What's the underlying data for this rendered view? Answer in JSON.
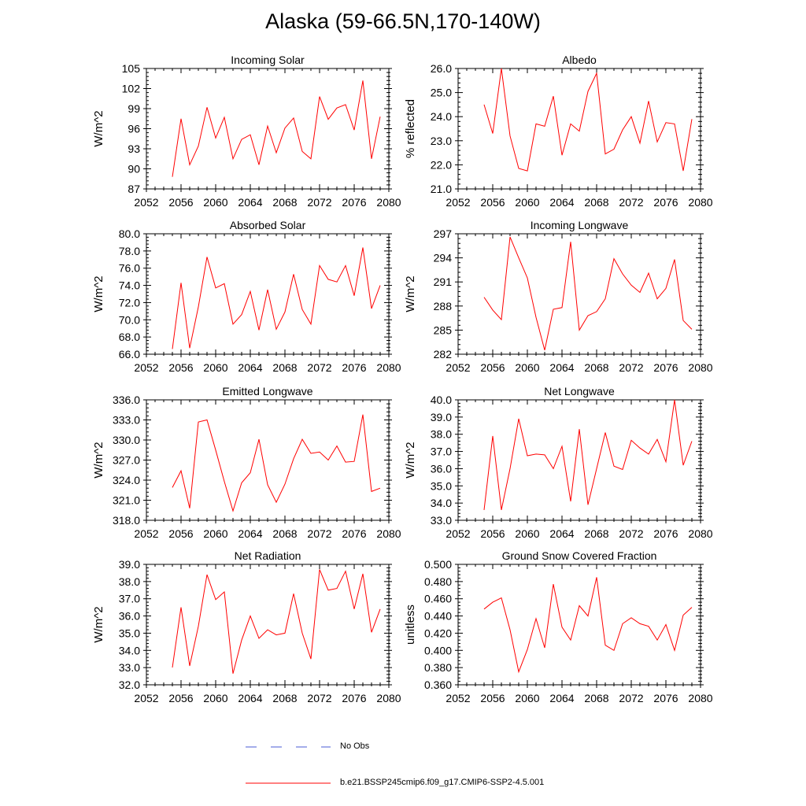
{
  "title": "Alaska (59-66.5N,170-140W)",
  "legend": {
    "obs_label": "No Obs",
    "obs_color": "#4a5bd4",
    "model_label": "b.e21.BSSP245cmip6.f09_g17.CMIP6-SSP2-4.5.001",
    "model_color": "#ff0000"
  },
  "chart_data": [
    {
      "type": "line",
      "title": "Incoming Solar",
      "ylabel": "W/m^2",
      "xlim": [
        2052,
        2080
      ],
      "ylim": [
        87,
        105
      ],
      "xticks": [
        "2052",
        "2056",
        "2060",
        "2064",
        "2068",
        "2072",
        "2076",
        "2080"
      ],
      "yticks": [
        "87",
        "90",
        "93",
        "96",
        "99",
        "102",
        "105"
      ],
      "x": [
        2055,
        2056,
        2057,
        2058,
        2059,
        2060,
        2061,
        2062,
        2063,
        2064,
        2065,
        2066,
        2067,
        2068,
        2069,
        2070,
        2071,
        2072,
        2073,
        2074,
        2075,
        2076,
        2077,
        2078,
        2079
      ],
      "series": [
        {
          "color": "#ff0000",
          "values": [
            88.8,
            97.5,
            90.6,
            93.4,
            99.2,
            94.6,
            97.7,
            91.5,
            94.4,
            95.1,
            90.6,
            96.4,
            92.4,
            96.1,
            97.6,
            92.6,
            91.5,
            100.8,
            97.4,
            99.1,
            99.6,
            95.8,
            103.2,
            91.5,
            97.8
          ]
        }
      ]
    },
    {
      "type": "line",
      "title": "Albedo",
      "ylabel": "% reflected",
      "xlim": [
        2052,
        2080
      ],
      "ylim": [
        21.0,
        26.0
      ],
      "xticks": [
        "2052",
        "2056",
        "2060",
        "2064",
        "2068",
        "2072",
        "2076",
        "2080"
      ],
      "yticks": [
        "21.0",
        "22.0",
        "23.0",
        "24.0",
        "25.0",
        "26.0"
      ],
      "x": [
        2055,
        2056,
        2057,
        2058,
        2059,
        2060,
        2061,
        2062,
        2063,
        2064,
        2065,
        2066,
        2067,
        2068,
        2069,
        2070,
        2071,
        2072,
        2073,
        2074,
        2075,
        2076,
        2077,
        2078,
        2079
      ],
      "series": [
        {
          "color": "#ff0000",
          "values": [
            24.5,
            23.3,
            26.0,
            23.2,
            21.85,
            21.75,
            23.7,
            23.6,
            24.85,
            22.4,
            23.7,
            23.4,
            25.05,
            25.8,
            22.45,
            22.65,
            23.45,
            24.0,
            22.9,
            24.65,
            22.95,
            23.75,
            23.7,
            21.75,
            23.9
          ]
        }
      ]
    },
    {
      "type": "line",
      "title": "Absorbed Solar",
      "ylabel": "W/m^2",
      "xlim": [
        2052,
        2080
      ],
      "ylim": [
        66.0,
        80.0
      ],
      "xticks": [
        "2052",
        "2056",
        "2060",
        "2064",
        "2068",
        "2072",
        "2076",
        "2080"
      ],
      "yticks": [
        "66.0",
        "68.0",
        "70.0",
        "72.0",
        "74.0",
        "76.0",
        "78.0",
        "80.0"
      ],
      "x": [
        2055,
        2056,
        2057,
        2058,
        2059,
        2060,
        2061,
        2062,
        2063,
        2064,
        2065,
        2066,
        2067,
        2068,
        2069,
        2070,
        2071,
        2072,
        2073,
        2074,
        2075,
        2076,
        2077,
        2078,
        2079
      ],
      "series": [
        {
          "color": "#ff0000",
          "values": [
            66.6,
            74.3,
            66.7,
            71.5,
            77.3,
            73.7,
            74.2,
            69.5,
            70.6,
            73.3,
            68.8,
            73.5,
            68.9,
            70.9,
            75.3,
            71.2,
            69.5,
            76.3,
            74.7,
            74.4,
            76.3,
            72.8,
            78.4,
            71.3,
            74.0
          ]
        }
      ]
    },
    {
      "type": "line",
      "title": "Incoming Longwave",
      "ylabel": "W/m^2",
      "xlim": [
        2052,
        2080
      ],
      "ylim": [
        282,
        297
      ],
      "xticks": [
        "2052",
        "2056",
        "2060",
        "2064",
        "2068",
        "2072",
        "2076",
        "2080"
      ],
      "yticks": [
        "282",
        "285",
        "288",
        "291",
        "294",
        "297"
      ],
      "x": [
        2055,
        2056,
        2057,
        2058,
        2059,
        2060,
        2061,
        2062,
        2063,
        2064,
        2065,
        2066,
        2067,
        2068,
        2069,
        2070,
        2071,
        2072,
        2073,
        2074,
        2075,
        2076,
        2077,
        2078,
        2079
      ],
      "series": [
        {
          "color": "#ff0000",
          "values": [
            289.1,
            287.5,
            286.3,
            296.6,
            294.0,
            291.5,
            286.6,
            282.5,
            287.6,
            287.8,
            296.0,
            285.0,
            286.8,
            287.3,
            288.9,
            293.9,
            292.0,
            290.6,
            289.7,
            292.1,
            288.9,
            290.2,
            293.8,
            286.2,
            285.1
          ]
        }
      ]
    },
    {
      "type": "line",
      "title": "Emitted Longwave",
      "ylabel": "W/m^2",
      "xlim": [
        2052,
        2080
      ],
      "ylim": [
        318.0,
        336.0
      ],
      "xticks": [
        "2052",
        "2056",
        "2060",
        "2064",
        "2068",
        "2072",
        "2076",
        "2080"
      ],
      "yticks": [
        "318.0",
        "321.0",
        "324.0",
        "327.0",
        "330.0",
        "333.0",
        "336.0"
      ],
      "x": [
        2055,
        2056,
        2057,
        2058,
        2059,
        2060,
        2061,
        2062,
        2063,
        2064,
        2065,
        2066,
        2067,
        2068,
        2069,
        2070,
        2071,
        2072,
        2073,
        2074,
        2075,
        2076,
        2077,
        2078,
        2079
      ],
      "series": [
        {
          "color": "#ff0000",
          "values": [
            322.9,
            325.4,
            319.8,
            332.7,
            333.0,
            328.5,
            323.8,
            319.4,
            323.6,
            325.1,
            330.1,
            323.3,
            320.7,
            323.4,
            327.2,
            330.1,
            328.0,
            328.2,
            327.0,
            329.1,
            326.7,
            326.8,
            333.8,
            322.3,
            322.8
          ]
        }
      ]
    },
    {
      "type": "line",
      "title": "Net Longwave",
      "ylabel": "W/m^2",
      "xlim": [
        2052,
        2080
      ],
      "ylim": [
        33.0,
        40.0
      ],
      "xticks": [
        "2052",
        "2056",
        "2060",
        "2064",
        "2068",
        "2072",
        "2076",
        "2080"
      ],
      "yticks": [
        "33.0",
        "34.0",
        "35.0",
        "36.0",
        "37.0",
        "38.0",
        "39.0",
        "40.0"
      ],
      "x": [
        2055,
        2056,
        2057,
        2058,
        2059,
        2060,
        2061,
        2062,
        2063,
        2064,
        2065,
        2066,
        2067,
        2068,
        2069,
        2070,
        2071,
        2072,
        2073,
        2074,
        2075,
        2076,
        2077,
        2078,
        2079
      ],
      "series": [
        {
          "color": "#ff0000",
          "values": [
            33.6,
            37.9,
            33.6,
            36.0,
            38.9,
            36.75,
            36.85,
            36.8,
            36.0,
            37.3,
            34.1,
            38.3,
            33.9,
            36.0,
            38.1,
            36.15,
            35.95,
            37.65,
            37.2,
            36.85,
            37.7,
            36.4,
            40.0,
            36.2,
            37.6
          ]
        }
      ]
    },
    {
      "type": "line",
      "title": "Net Radiation",
      "ylabel": "W/m^2",
      "xlim": [
        2052,
        2080
      ],
      "ylim": [
        32.0,
        39.0
      ],
      "xticks": [
        "2052",
        "2056",
        "2060",
        "2064",
        "2068",
        "2072",
        "2076",
        "2080"
      ],
      "yticks": [
        "32.0",
        "33.0",
        "34.0",
        "35.0",
        "36.0",
        "37.0",
        "38.0",
        "39.0"
      ],
      "x": [
        2055,
        2056,
        2057,
        2058,
        2059,
        2060,
        2061,
        2062,
        2063,
        2064,
        2065,
        2066,
        2067,
        2068,
        2069,
        2070,
        2071,
        2072,
        2073,
        2074,
        2075,
        2076,
        2077,
        2078,
        2079
      ],
      "series": [
        {
          "color": "#ff0000",
          "values": [
            33.0,
            36.5,
            33.1,
            35.4,
            38.4,
            36.95,
            37.4,
            32.65,
            34.6,
            36.0,
            34.7,
            35.2,
            34.9,
            35.0,
            37.3,
            35.0,
            33.5,
            38.7,
            37.5,
            37.6,
            38.6,
            36.4,
            38.45,
            35.05,
            36.4
          ]
        }
      ]
    },
    {
      "type": "line",
      "title": "Ground Snow Covered Fraction",
      "ylabel": "unitless",
      "xlim": [
        2052,
        2080
      ],
      "ylim": [
        0.36,
        0.5
      ],
      "xticks": [
        "2052",
        "2056",
        "2060",
        "2064",
        "2068",
        "2072",
        "2076",
        "2080"
      ],
      "yticks": [
        "0.360",
        "0.380",
        "0.400",
        "0.420",
        "0.440",
        "0.460",
        "0.480",
        "0.500"
      ],
      "x": [
        2055,
        2056,
        2057,
        2058,
        2059,
        2060,
        2061,
        2062,
        2063,
        2064,
        2065,
        2066,
        2067,
        2068,
        2069,
        2070,
        2071,
        2072,
        2073,
        2074,
        2075,
        2076,
        2077,
        2078,
        2079
      ],
      "series": [
        {
          "color": "#ff0000",
          "values": [
            0.448,
            0.456,
            0.461,
            0.424,
            0.375,
            0.401,
            0.437,
            0.403,
            0.477,
            0.427,
            0.412,
            0.452,
            0.44,
            0.485,
            0.406,
            0.4,
            0.431,
            0.438,
            0.431,
            0.428,
            0.412,
            0.43,
            0.4,
            0.441,
            0.45
          ]
        }
      ]
    }
  ]
}
